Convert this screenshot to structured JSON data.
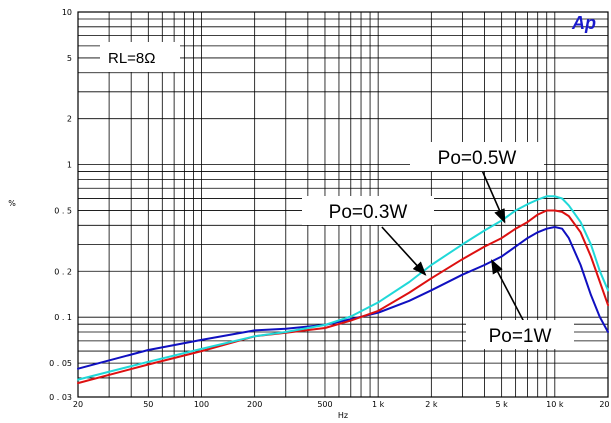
{
  "chart_data": {
    "type": "line",
    "title": "",
    "xlabel": "Hz",
    "ylabel": "%",
    "x_scale": "log",
    "y_scale": "log",
    "xlim": [
      20,
      20000
    ],
    "ylim": [
      0.03,
      10
    ],
    "x_ticks": [
      20,
      50,
      100,
      200,
      500,
      1000,
      2000,
      5000,
      10000,
      20000
    ],
    "x_tick_labels": [
      "20",
      "50",
      "100",
      "200",
      "500",
      "1 k",
      "2 k",
      "5 k",
      "10 k",
      "20 k"
    ],
    "y_ticks": [
      0.03,
      0.05,
      0.1,
      0.2,
      0.5,
      1,
      2,
      5,
      10
    ],
    "y_tick_labels": [
      "0 . 03",
      "0 . 05",
      "0 . 1",
      "0 . 2",
      "0 . 5",
      "1",
      "2",
      "5",
      "10"
    ],
    "grid": true,
    "logo": "Ap",
    "logo_color": "#1a1acc",
    "condition_label": "RL=8Ω",
    "series": [
      {
        "name": "Po=1W",
        "color": "#1010c0",
        "x": [
          20,
          50,
          100,
          200,
          300,
          500,
          700,
          1000,
          1500,
          2000,
          3000,
          4000,
          5000,
          6000,
          7000,
          8000,
          9000,
          10000,
          11000,
          12000,
          14000,
          16000,
          18000,
          20000
        ],
        "y": [
          0.046,
          0.061,
          0.071,
          0.082,
          0.084,
          0.089,
          0.097,
          0.107,
          0.128,
          0.15,
          0.19,
          0.22,
          0.25,
          0.29,
          0.33,
          0.36,
          0.38,
          0.39,
          0.38,
          0.33,
          0.22,
          0.14,
          0.1,
          0.08
        ]
      },
      {
        "name": "Po=0.5W",
        "color": "#dd1010",
        "x": [
          20,
          50,
          100,
          200,
          300,
          500,
          700,
          1000,
          1500,
          2000,
          3000,
          4000,
          5000,
          6000,
          7000,
          8000,
          9000,
          10000,
          11000,
          12000,
          14000,
          16000,
          18000,
          20000
        ],
        "y": [
          0.037,
          0.049,
          0.06,
          0.075,
          0.079,
          0.085,
          0.095,
          0.11,
          0.145,
          0.18,
          0.24,
          0.29,
          0.33,
          0.38,
          0.42,
          0.47,
          0.5,
          0.5,
          0.49,
          0.46,
          0.36,
          0.25,
          0.17,
          0.12
        ]
      },
      {
        "name": "Po=0.3W",
        "color": "#20d8d8",
        "x": [
          20,
          50,
          100,
          200,
          300,
          500,
          700,
          1000,
          1500,
          2000,
          3000,
          4000,
          5000,
          6000,
          7000,
          8000,
          9000,
          10000,
          11000,
          12000,
          14000,
          16000,
          18000,
          20000
        ],
        "y": [
          0.039,
          0.051,
          0.062,
          0.075,
          0.08,
          0.089,
          0.101,
          0.125,
          0.17,
          0.22,
          0.3,
          0.37,
          0.43,
          0.5,
          0.55,
          0.59,
          0.62,
          0.62,
          0.6,
          0.54,
          0.42,
          0.3,
          0.2,
          0.15
        ]
      }
    ],
    "annotations": [
      {
        "label": "Po=0.5W",
        "arrow_from": [
          3900,
          0.9
        ],
        "arrow_to": [
          5200,
          0.42
        ]
      },
      {
        "label": "Po=0.3W",
        "arrow_from": [
          1050,
          0.39
        ],
        "arrow_to": [
          1850,
          0.19
        ]
      },
      {
        "label": "Po=1W",
        "arrow_from": [
          6800,
          0.09
        ],
        "arrow_to": [
          4400,
          0.235
        ]
      }
    ]
  }
}
